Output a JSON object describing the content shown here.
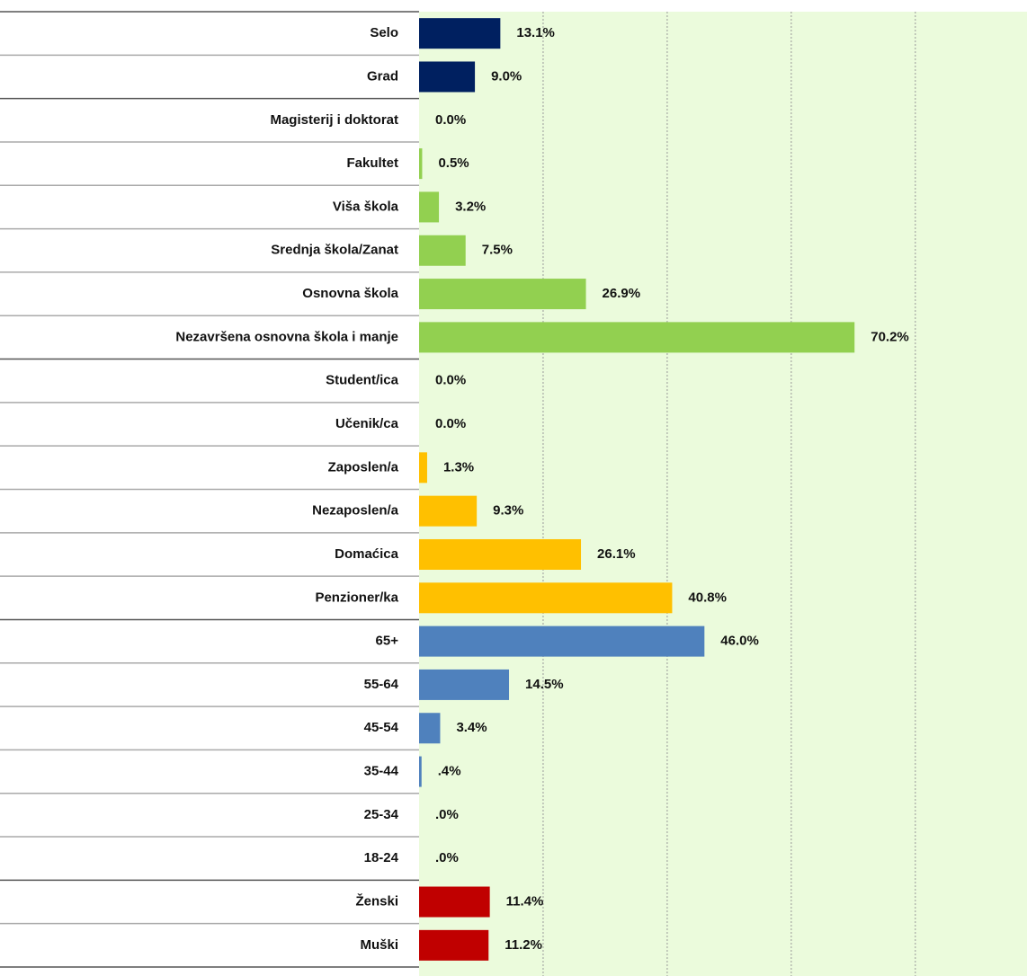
{
  "chart_data": {
    "type": "bar",
    "orientation": "horizontal",
    "categories": [
      "Selo",
      "Grad",
      "Magisterij i doktorat",
      "Fakultet",
      "Viša škola",
      "Srednja škola/Zanat",
      "Osnovna škola",
      "Nezavršena osnovna škola i manje",
      "Student/ica",
      "Učenik/ca",
      "Zaposlen/a",
      "Nezaposlen/a",
      "Domaćica",
      "Penzioner/ka",
      "65+",
      "55-64",
      "45-54",
      "35-44",
      "25-34",
      "18-24",
      "Ženski",
      "Muški"
    ],
    "values": [
      13.1,
      9.0,
      0.0,
      0.5,
      3.2,
      7.5,
      26.9,
      70.2,
      0.0,
      0.0,
      1.3,
      9.3,
      26.1,
      40.8,
      46.0,
      14.5,
      3.4,
      0.4,
      0.0,
      0.0,
      11.4,
      11.2
    ],
    "value_labels": [
      "13.1%",
      "9.0%",
      "0.0%",
      "0.5%",
      "3.2%",
      "7.5%",
      "26.9%",
      "70.2%",
      "0.0%",
      "0.0%",
      "1.3%",
      "9.3%",
      "26.1%",
      "40.8%",
      "46.0%",
      "14.5%",
      "3.4%",
      ".4%",
      ".0%",
      ".0%",
      "11.4%",
      "11.2%"
    ],
    "colors": [
      "#002060",
      "#002060",
      "#92d050",
      "#92d050",
      "#92d050",
      "#92d050",
      "#92d050",
      "#92d050",
      "#ffc000",
      "#ffc000",
      "#ffc000",
      "#ffc000",
      "#ffc000",
      "#ffc000",
      "#4f81bd",
      "#4f81bd",
      "#4f81bd",
      "#4f81bd",
      "#4f81bd",
      "#4f81bd",
      "#c00000",
      "#c00000"
    ],
    "xlim": [
      0,
      98
    ],
    "xticks": [
      20,
      40,
      60,
      80
    ],
    "grid": true
  }
}
